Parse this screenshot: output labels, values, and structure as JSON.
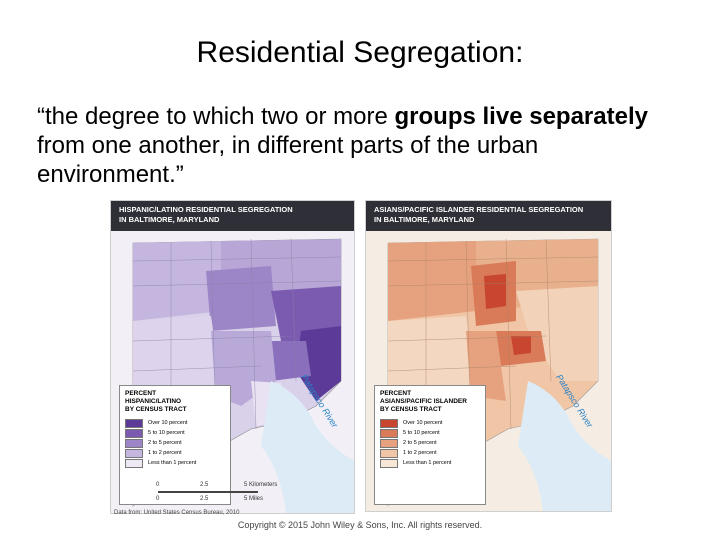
{
  "title": "Residential Segregation:",
  "quote": {
    "open": "“the degree to which two or more ",
    "bold1": "groups live",
    "mid": " ",
    "bold2": "separately",
    "close": " from one another, in different parts of the urban environment.”"
  },
  "maps": [
    {
      "title_line1": "HISPANIC/LATINO RESIDENTIAL SEGREGATION",
      "title_line2": "IN BALTIMORE, MARYLAND",
      "legend_title_lines": [
        "PERCENT",
        "HISPANIC/LATINO",
        "BY CENSUS TRACT"
      ],
      "legend": [
        {
          "label": "Over 10 percent",
          "color": "#5b3a98"
        },
        {
          "label": "5 to 10 percent",
          "color": "#7a5bb0"
        },
        {
          "label": "2 to 5 percent",
          "color": "#9d86c7"
        },
        {
          "label": "1 to 2 percent",
          "color": "#c4b6de"
        },
        {
          "label": "Less than 1 percent",
          "color": "#eee9f4"
        }
      ],
      "river_label": "Patapsco River"
    },
    {
      "title_line1": "ASIANS/PACIFIC ISLANDER RESIDENTIAL SEGREGATION",
      "title_line2": "IN BALTIMORE, MARYLAND",
      "legend_title_lines": [
        "PERCENT",
        "ASIANS/PACIFIC ISLANDER",
        "BY CENSUS TRACT"
      ],
      "legend": [
        {
          "label": "Over 10 percent",
          "color": "#c8462f"
        },
        {
          "label": "5 to 10 percent",
          "color": "#d97a58"
        },
        {
          "label": "2 to 5 percent",
          "color": "#e6a27e"
        },
        {
          "label": "1 to 2 percent",
          "color": "#f0c6a6"
        },
        {
          "label": "Less than 1 percent",
          "color": "#f8e6d6"
        }
      ],
      "river_label": "Patapsco River"
    }
  ],
  "scale": {
    "km_labels": [
      "0",
      "2.5",
      "5 Kilometers"
    ],
    "mile_labels": [
      "0",
      "2.5",
      "5 Miles"
    ]
  },
  "source": "Data from: United States Census Bureau, 2010",
  "copyright": "Copyright © 2015 John Wiley & Sons, Inc. All rights reserved."
}
